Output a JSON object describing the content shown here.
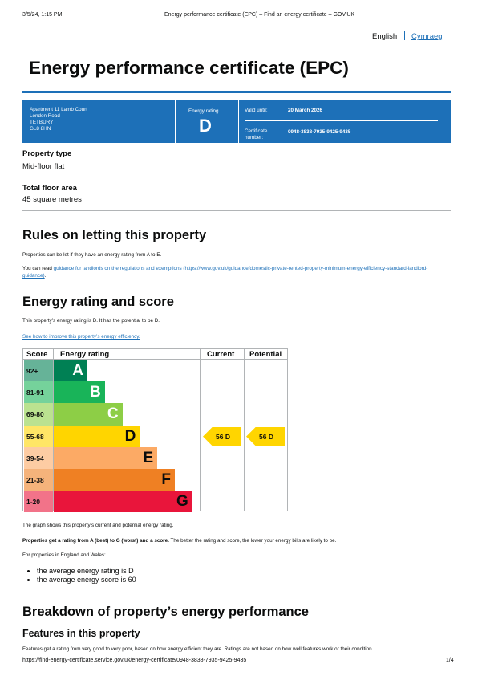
{
  "browser_header": {
    "datetime": "3/5/24, 1:15 PM",
    "page_title": "Energy performance certificate (EPC) – Find an energy certificate – GOV.UK"
  },
  "language": {
    "english": "English",
    "cymraeg": "Cymraeg"
  },
  "title": "Energy performance certificate (EPC)",
  "summary": {
    "address": [
      "Apartment 11 Lamb Court",
      "London Road",
      "TETBURY",
      "GL8 8HN"
    ],
    "rating_label": "Energy rating",
    "rating": "D",
    "valid_label": "Valid until:",
    "valid_until": "20 March 2026",
    "cert_label": "Certificate number:",
    "cert_number": "0948-3838-7935-9425-9435"
  },
  "property": [
    {
      "label": "Property type",
      "value": "Mid-floor flat"
    },
    {
      "label": "Total floor area",
      "value": "45 square metres"
    }
  ],
  "rules": {
    "heading": "Rules on letting this property",
    "p1": "Properties can be let if they have an energy rating from A to E.",
    "p2_start": "You can read ",
    "p2_link": "guidance for landlords on the regulations and exemptions (https://www.gov.uk/guidance/domestic-private-rented-property-minimum-energy-efficiency-standard-landlord-guidance)",
    "p2_end": "."
  },
  "rating_section": {
    "heading": "Energy rating and score",
    "p1": "This property’s energy rating is D. It has the potential to be D.",
    "link": "See how to improve this property’s energy efficiency.",
    "table": {
      "headers": [
        "Score",
        "Energy rating",
        "Current",
        "Potential"
      ],
      "bands": [
        {
          "score": "92+",
          "letter": "A",
          "color": "#008054",
          "tint": "#66b398"
        },
        {
          "score": "81-91",
          "letter": "B",
          "color": "#19b459",
          "tint": "#75d29b"
        },
        {
          "score": "69-80",
          "letter": "C",
          "color": "#8dce46",
          "tint": "#bbe290"
        },
        {
          "score": "55-68",
          "letter": "D",
          "color": "#ffd500",
          "tint": "#ffe666"
        },
        {
          "score": "39-54",
          "letter": "E",
          "color": "#fcaa65",
          "tint": "#fdcca3"
        },
        {
          "score": "21-38",
          "letter": "F",
          "color": "#ef8023",
          "tint": "#f5b37b"
        },
        {
          "score": "1-20",
          "letter": "G",
          "color": "#e9153b",
          "tint": "#f27389"
        }
      ],
      "current": "56 D",
      "potential": "56 D"
    },
    "p2": "The graph shows this property’s current and potential energy rating.",
    "p3_bold": "Properties get a rating from A (best) to G (worst) and a score.",
    "p3_rest": " The better the rating and score, the lower your energy bills are likely to be.",
    "p4": "For properties in England and Wales:",
    "bullets": [
      "the average energy rating is D",
      "the average energy score is 60"
    ]
  },
  "breakdown": {
    "heading": "Breakdown of property’s energy performance",
    "subheading": "Features in this property",
    "p1": "Features get a rating from very good to very poor, based on how energy efficient they are. Ratings are not based on how well features work or their condition."
  },
  "footer": {
    "url": "https://find-energy-certificate.service.gov.uk/energy-certificate/0948-3838-7935-9425-9435",
    "page": "1/4"
  }
}
